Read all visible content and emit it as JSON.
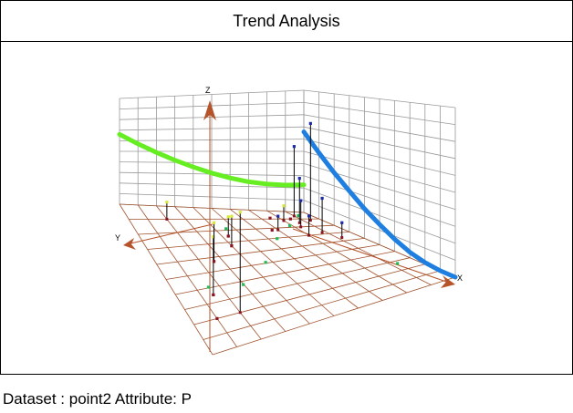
{
  "chart_title": "Trend Analysis",
  "footer_text": "Dataset : point2 Attribute: P",
  "chart_data": {
    "type": "scatter",
    "title": "Trend Analysis",
    "projection": "3d",
    "axes": {
      "x_label": "X",
      "y_label": "Y",
      "z_label": "Z"
    },
    "xlim": [
      0,
      10
    ],
    "ylim": [
      0,
      10
    ],
    "zlim": [
      0,
      10
    ],
    "grid": true,
    "series": [
      {
        "color": "#66ee22",
        "kind": "curve",
        "plane": "back-wall",
        "points": [
          [
            0,
            6.6
          ],
          [
            1,
            5.7
          ],
          [
            2,
            4.9
          ],
          [
            3,
            4.2
          ],
          [
            4,
            3.6
          ],
          [
            5,
            3.1
          ],
          [
            6,
            2.7
          ],
          [
            7,
            2.4
          ],
          [
            8,
            2.25
          ],
          [
            9,
            2.2
          ],
          [
            10,
            2.25
          ]
        ]
      },
      {
        "color": "#1f7fe0",
        "kind": "curve",
        "plane": "side-wall",
        "points": [
          [
            0,
            6.6
          ],
          [
            1,
            5.2
          ],
          [
            2,
            4.0
          ],
          [
            3,
            3.0
          ],
          [
            4,
            2.1
          ],
          [
            5,
            1.4
          ],
          [
            6,
            0.8
          ],
          [
            7,
            0.35
          ],
          [
            8,
            0.1
          ],
          [
            9,
            0.0
          ],
          [
            10,
            0.0
          ]
        ]
      },
      {
        "color": "#d8e83a",
        "kind": "points",
        "stems": true,
        "points": [
          [
            2,
            8,
            8.8
          ],
          [
            1.5,
            6.5,
            5.1
          ],
          [
            2.6,
            4.3,
            3.4
          ],
          [
            4.0,
            3.3,
            2.6
          ],
          [
            4.3,
            2.5,
            1.7
          ],
          [
            2,
            1,
            1.5
          ],
          [
            8,
            1.2,
            1.3
          ]
        ]
      },
      {
        "color": "#22bb55",
        "kind": "points",
        "stems": false,
        "points": [
          [
            1,
            8.9,
            9.0
          ],
          [
            3.5,
            8.2,
            5.9
          ],
          [
            2,
            8.3,
            2.8
          ],
          [
            3.8,
            6.6,
            2.0
          ],
          [
            5.5,
            5.5,
            3.5
          ],
          [
            6.5,
            4.5,
            3.2
          ],
          [
            8.5,
            8.5,
            1.2
          ],
          [
            0.5,
            8.3,
            3.4
          ]
        ]
      },
      {
        "color": "#1a2aa8",
        "kind": "points",
        "stems": true,
        "points": [
          [
            9.4,
            1.2,
            8.5
          ],
          [
            9,
            0.6,
            6.1
          ],
          [
            8.6,
            1.5,
            3.9
          ],
          [
            8.8,
            2.8,
            3.0
          ],
          [
            8.3,
            2.0,
            2.3
          ],
          [
            8,
            3.0,
            1.7
          ],
          [
            7,
            2.2,
            1.2
          ],
          [
            9.2,
            3.6,
            1.3
          ]
        ]
      },
      {
        "color": "#8a1420",
        "kind": "points",
        "stems": false,
        "points": [
          [
            1.5,
            6.5,
            0
          ],
          [
            2.6,
            4.3,
            0
          ],
          [
            4,
            3.3,
            0
          ],
          [
            4.3,
            2.5,
            0
          ],
          [
            6.7,
            2.2,
            0
          ],
          [
            8.5,
            1.0,
            0
          ],
          [
            7.5,
            0.9,
            0
          ],
          [
            1,
            8,
            0
          ]
        ]
      }
    ]
  }
}
